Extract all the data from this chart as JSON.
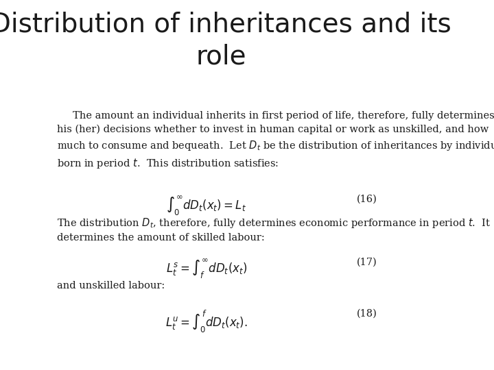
{
  "title_line1": "Distribution of inheritances and its",
  "title_line2": "role",
  "title_fontsize": 28,
  "title_font": "DejaVu Sans",
  "bg_color": "#ffffff",
  "text_color": "#1a1a1a",
  "body_fontsize": 10.5,
  "paragraph1": "     The amount an individual inherits in first period of life, therefore, fully determines\nhis (her) decisions whether to invest in human capital or work as unskilled, and how\nmuch to consume and bequeath.  Let $D_t$ be the distribution of inheritances by individuals\nborn in period $t$.  This distribution satisfies:",
  "eq16_label": "(16)",
  "eq16": "$\\int_0^{\\infty} dD_t(x_t) = L_t$",
  "paragraph2": "The distribution $D_t$, therefore, fully determines economic performance in period $t$.  It\ndetermines the amount of skilled labour:",
  "eq17_label": "(17)",
  "eq17": "$L_t^s = \\int_{f}^{\\infty} dD_t(x_t)$",
  "paragraph3": "and unskilled labour:",
  "eq18_label": "(18)",
  "eq18": "$L_t^u = \\int_0^{f} dD_t(x_t).$"
}
